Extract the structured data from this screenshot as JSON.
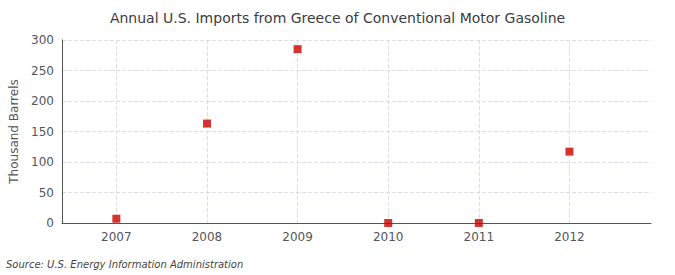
{
  "chart_data": {
    "type": "scatter",
    "title": "Annual U.S. Imports from Greece of Conventional Motor Gasoline",
    "ylabel": "Thousand Barrels",
    "source": "Source: U.S. Energy Information Administration",
    "x": [
      2007,
      2008,
      2009,
      2010,
      2011,
      2012
    ],
    "values": [
      7,
      163,
      285,
      0,
      0,
      117
    ],
    "color": "#cc0000",
    "marker": "square",
    "xlim": [
      2006.4,
      2012.9
    ],
    "ylim": [
      0,
      300
    ],
    "xticks": [
      2007,
      2008,
      2009,
      2010,
      2011,
      2012
    ],
    "yticks": [
      0,
      50,
      100,
      150,
      200,
      250,
      300
    ],
    "grid": true
  }
}
